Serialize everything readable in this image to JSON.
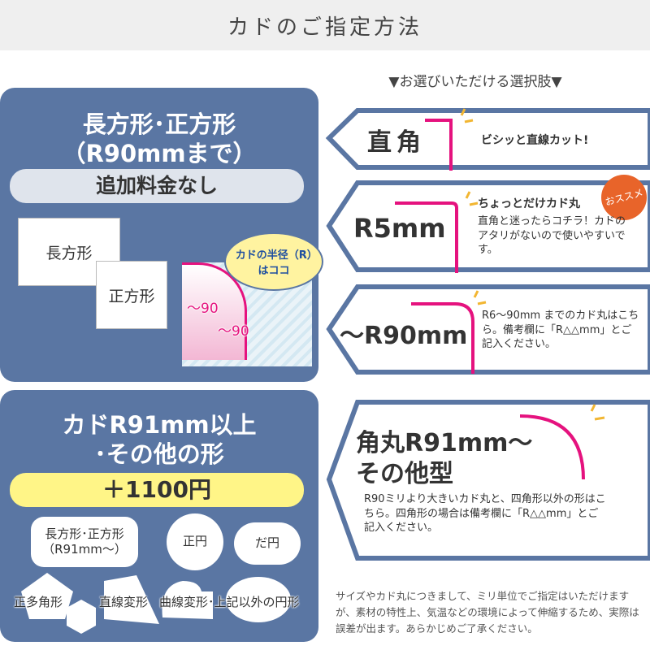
{
  "header": {
    "title": "カドのご指定方法"
  },
  "subtitle": "▼お選びいただける選択肢▼",
  "panel_standard": {
    "title_line1": "長方形･正方形",
    "title_line2": "（R90mmまで）",
    "price": "追加料金なし",
    "shape_rect": "長方形",
    "shape_square": "正方形",
    "bubble": "カドの半径（R）はココ",
    "radius_label1": "～90",
    "radius_label2": "～90"
  },
  "panel_extra": {
    "title_line1": "カドR91mm以上",
    "title_line2": "･その他の形",
    "price": "＋1100円",
    "shapes": [
      "長方形･正方形（R91mm～）",
      "正円",
      "だ円",
      "正多角形",
      "直線変形",
      "曲線変形･上記以外の円形"
    ]
  },
  "options": [
    {
      "label": "直角",
      "desc": "ビシッと直線カット!"
    },
    {
      "label": "R5mm",
      "heading": "ちょっとだけカド丸",
      "desc": "直角と迷ったらコチラ！カドのアタリがないので使いやすいです。",
      "badge": "おススメ"
    },
    {
      "label": "～R90mm",
      "desc": "R6～90mm までのカド丸はこちら。備考欄に「R△△mm」とご記入ください。"
    },
    {
      "label_line1": "角丸R91mm～",
      "label_line2": "その他型",
      "desc": "R90ミリより大きいカド丸と、四角形以外の形はこちら。四角形の場合は備考欄に「R△△mm」とご記入ください。"
    }
  ],
  "footnote": "サイズやカド丸につきまして、ミリ単位でご指定はいただけますが、素材の特性上、気温などの環境によって伸縮するため、実際は誤差が出ます。あらかじめご了承ください。",
  "colors": {
    "panel": "#5a76a3",
    "accent": "#e5127e",
    "highlight": "#fff587",
    "badge": "#e8642a",
    "spark": "#f2b632"
  }
}
